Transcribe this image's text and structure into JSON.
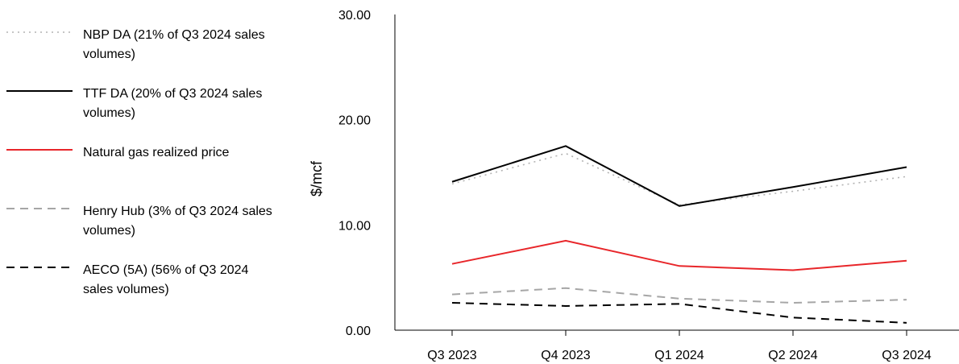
{
  "chart_data": {
    "type": "line",
    "title": "",
    "xlabel": "",
    "ylabel": "$/mcf",
    "categories": [
      "Q3 2023",
      "Q4 2023",
      "Q1 2024",
      "Q2 2024",
      "Q3 2024"
    ],
    "y_ticks": [
      "0.00",
      "10.00",
      "20.00",
      "30.00"
    ],
    "ylim": [
      0,
      30
    ],
    "grid": false,
    "legend_position": "left",
    "series": [
      {
        "name": "NBP DA (21% of Q3 2024 sales volumes)",
        "color": "#b3b3b3",
        "style": "dotted",
        "values": [
          13.9,
          16.8,
          11.9,
          13.2,
          14.6
        ]
      },
      {
        "name": "TTF DA (20% of Q3 2024 sales volumes)",
        "color": "#000000",
        "style": "solid",
        "values": [
          14.1,
          17.5,
          11.8,
          13.6,
          15.5
        ]
      },
      {
        "name": "Natural gas realized price",
        "color": "#e8262a",
        "style": "solid",
        "values": [
          6.3,
          8.5,
          6.1,
          5.7,
          6.6
        ]
      },
      {
        "name": "Henry Hub (3% of Q3 2024 sales volumes)",
        "color": "#a6a6a6",
        "style": "dashed",
        "values": [
          3.4,
          4.0,
          3.0,
          2.6,
          2.9
        ]
      },
      {
        "name": "AECO (5A) (56% of Q3 2024 sales volumes)",
        "color": "#000000",
        "style": "dashed",
        "values": [
          2.6,
          2.3,
          2.5,
          1.2,
          0.7
        ]
      }
    ]
  }
}
